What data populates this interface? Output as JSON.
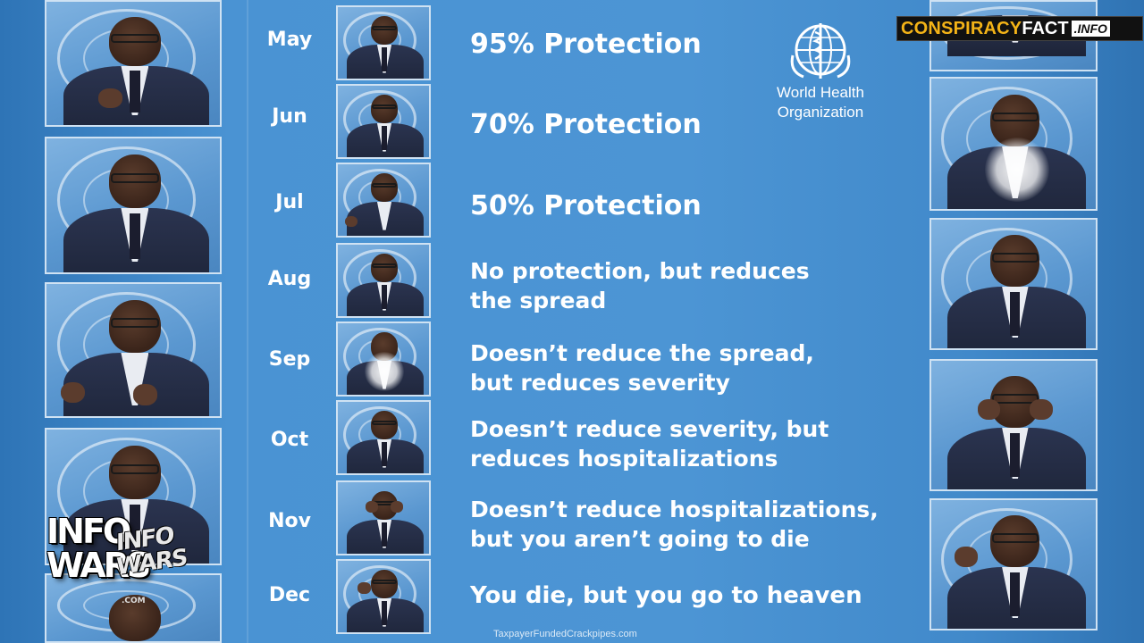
{
  "rows": [
    {
      "month": "May",
      "lines": [
        "95% Protection"
      ]
    },
    {
      "month": "Jun",
      "lines": [
        "70% Protection"
      ]
    },
    {
      "month": "Jul",
      "lines": [
        "50% Protection"
      ]
    },
    {
      "month": "Aug",
      "lines": [
        "No protection, but reduces",
        "the spread"
      ]
    },
    {
      "month": "Sep",
      "lines": [
        "Doesn’t reduce the spread,",
        "but reduces severity"
      ]
    },
    {
      "month": "Oct",
      "lines": [
        "Doesn’t reduce severity, but",
        "reduces hospitalizations"
      ]
    },
    {
      "month": "Nov",
      "lines": [
        "Doesn’t reduce hospitalizations,",
        "but you aren’t going to die"
      ]
    },
    {
      "month": "Dec",
      "lines": [
        "You die, but you go to heaven"
      ]
    }
  ],
  "who": {
    "line1": "World Health",
    "line2": "Organization"
  },
  "banner": {
    "part1": "CONSPIRACY",
    "part2": "FACT",
    "part3": ".INFO"
  },
  "watermark": {
    "word1": "INFO",
    "word2": "WARS",
    "small1": "INFO",
    "small2": "WARS",
    "com": ".COM"
  },
  "footer": "TaxpayerFundedCrackpipes.com",
  "colors": {
    "background": "#3d86c6",
    "banner_accent": "#f3b317"
  }
}
